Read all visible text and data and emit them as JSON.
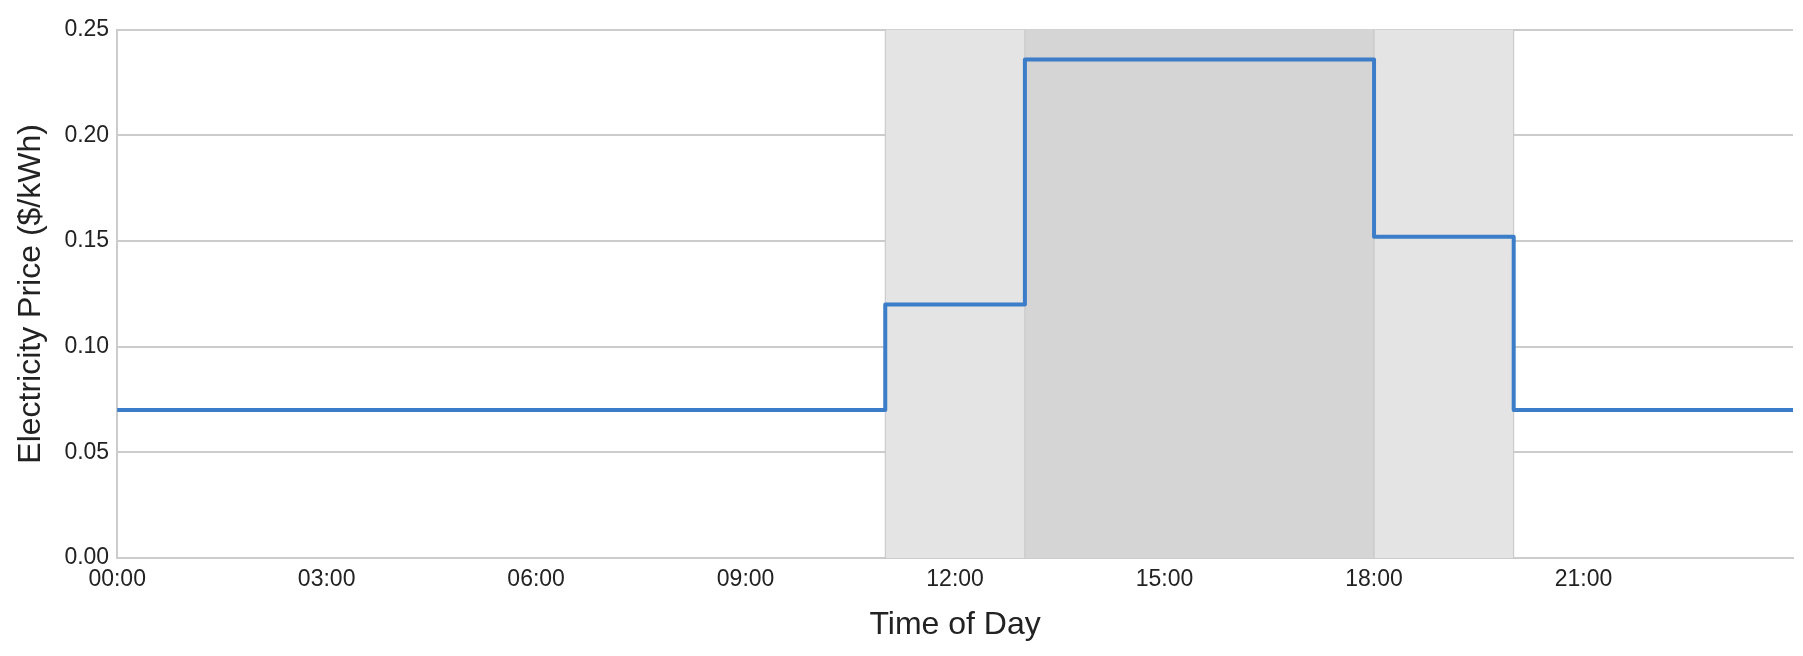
{
  "chart_data": {
    "type": "step",
    "xlabel": "Time of Day",
    "ylabel": "Electricity Price ($/kWh)",
    "series": [
      {
        "color": "#3b7dc8",
        "x": [
          0,
          11,
          13,
          18,
          20,
          24
        ],
        "values": [
          0.07,
          0.12,
          0.236,
          0.152,
          0.07,
          0.07
        ]
      }
    ],
    "xlim": [
      0,
      24
    ],
    "xticks": [
      {
        "value": 0,
        "label": "00:00"
      },
      {
        "value": 3,
        "label": "03:00"
      },
      {
        "value": 6,
        "label": "06:00"
      },
      {
        "value": 9,
        "label": "09:00"
      },
      {
        "value": 12,
        "label": "12:00"
      },
      {
        "value": 15,
        "label": "15:00"
      },
      {
        "value": 18,
        "label": "18:00"
      },
      {
        "value": 21,
        "label": "21:00"
      }
    ],
    "ylim": [
      0,
      0.25
    ],
    "yticks": [
      {
        "value": 0,
        "label": "0.00"
      },
      {
        "value": 0.05,
        "label": "0.05"
      },
      {
        "value": 0.1,
        "label": "0.10"
      },
      {
        "value": 0.15,
        "label": "0.15"
      },
      {
        "value": 0.2,
        "label": "0.20"
      },
      {
        "value": 0.25,
        "label": "0.25"
      }
    ],
    "bands": [
      {
        "axis": "x",
        "from": 11,
        "to": 20,
        "color": "#e4e4e4"
      },
      {
        "axis": "x",
        "from": 13,
        "to": 18,
        "color": "#d5d5d5"
      }
    ],
    "grid": "y",
    "legend": false,
    "marker": "none",
    "line_style": "solid"
  }
}
